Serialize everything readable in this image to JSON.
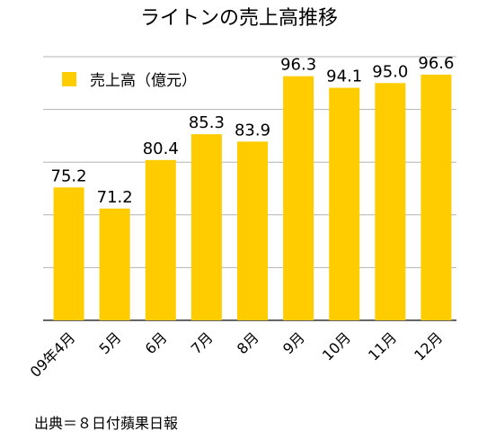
{
  "colors": {
    "bar": "#ffcc00",
    "grid": "#b3b3b3",
    "axis": "#333333",
    "text": "#000000"
  },
  "source": "出典＝８日付蘋果日報",
  "chart_data": {
    "type": "bar",
    "title": "ライトンの売上高推移",
    "xlabel": "",
    "ylabel": "",
    "categories": [
      "09年4月",
      "5月",
      "6月",
      "7月",
      "8月",
      "9月",
      "10月",
      "11月",
      "12月"
    ],
    "series": [
      {
        "name": "売上高（億元）",
        "values": [
          75.2,
          71.2,
          80.4,
          85.3,
          83.9,
          96.3,
          94.1,
          95.0,
          96.6
        ]
      }
    ],
    "data_labels": [
      "75.2",
      "71.2",
      "80.4",
      "85.3",
      "83.9",
      "96.3",
      "94.1",
      "95.0",
      "96.6"
    ],
    "ylim": [
      50,
      100
    ],
    "grid": true,
    "legend": "top-left",
    "y_tick_labels_shown": false
  }
}
